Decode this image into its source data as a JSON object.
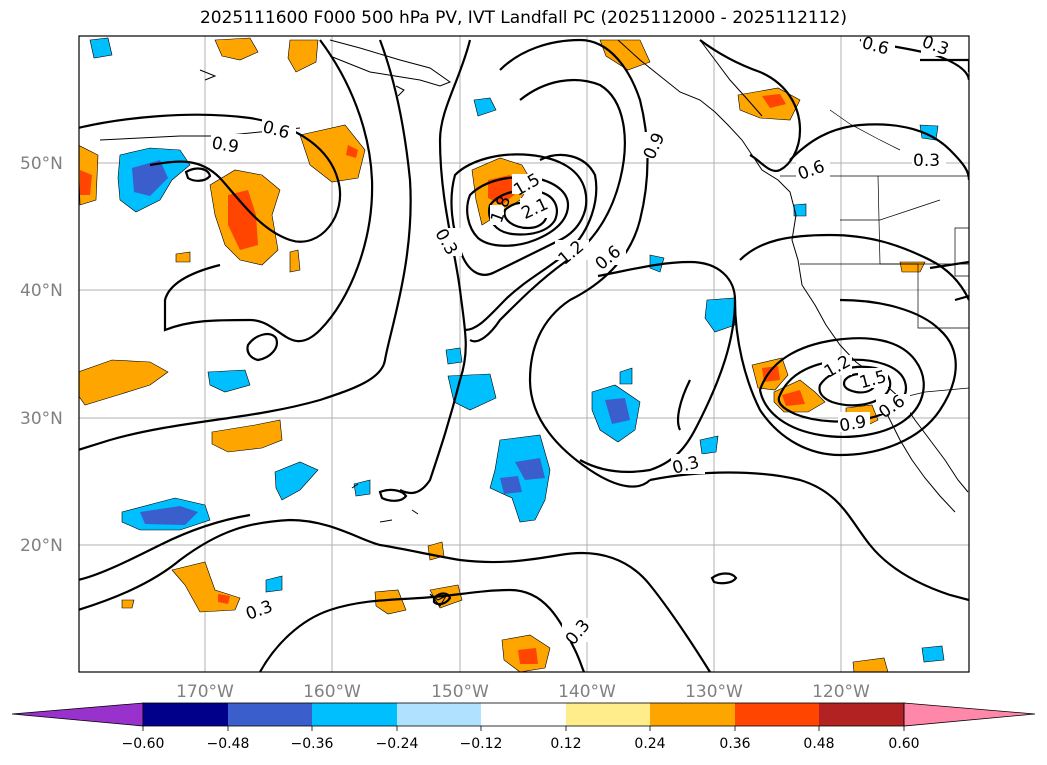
{
  "title": "2025111600 F000 500 hPa PV, IVT Landfall PC (2025112000 - 2025112112)",
  "lat_labels": [
    "50°N",
    "40°N",
    "30°N",
    "20°N"
  ],
  "lon_labels": [
    "170°W",
    "160°W",
    "150°W",
    "140°W",
    "130°W",
    "120°W"
  ],
  "contour_labels": [
    "0.6",
    "0.3",
    "0.9",
    "0.6",
    "0.3",
    "0.6",
    "0.3",
    "1.5",
    "2.1",
    "1.8",
    "1.2",
    "0.6",
    "0.9",
    "0.3",
    "0.6",
    "0.3",
    "0.3",
    "1.2",
    "1.5",
    "0.9",
    "0.6",
    "0.3"
  ],
  "colorbar": {
    "ticks": [
      "−0.60",
      "−0.48",
      "−0.36",
      "−0.24",
      "−0.12",
      "0.12",
      "0.24",
      "0.36",
      "0.48",
      "0.60"
    ],
    "colors": [
      "#9932cc",
      "#00008b",
      "#3a5fcd",
      "#00bfff",
      "#b0e2ff",
      "#ffffff",
      "#ffec8b",
      "#ffa500",
      "#ff4500",
      "#b22222",
      "#ff88aa"
    ]
  },
  "colors": {
    "contour": "#000000",
    "grid": "#b0b0b0",
    "axis_label": "#808080"
  }
}
